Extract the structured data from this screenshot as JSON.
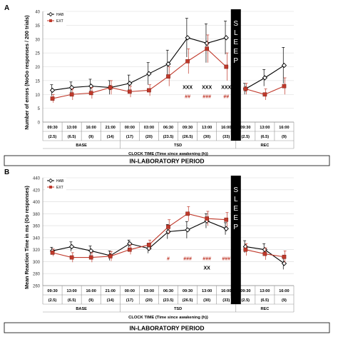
{
  "chart_data": [
    {
      "panel_label": "A",
      "type": "line",
      "ylabel": "Number of errors (NoGo responses / 200 trials)",
      "ylim": [
        0,
        40
      ],
      "yticks": [
        0,
        5,
        10,
        15,
        20,
        25,
        30,
        35,
        40
      ],
      "categories": [
        "09:30",
        "13:00",
        "16:00",
        "21:00",
        "00:00",
        "03:00",
        "06:30",
        "09:30",
        "13:00",
        "16:00",
        "09:30",
        "13:00",
        "16:00"
      ],
      "since_awakening": [
        "(2.5)",
        "(6.5)",
        "(9)",
        "(14)",
        "(17)",
        "(20)",
        "(23.5)",
        "(26.5)",
        "(30)",
        "(33)",
        "(2.5)",
        "(6.5)",
        "(9)"
      ],
      "period_groups": [
        {
          "label": "BASE",
          "span": [
            0,
            3
          ]
        },
        {
          "label": "TSD",
          "span": [
            4,
            9
          ]
        },
        {
          "label": "REC",
          "span": [
            10,
            12
          ]
        }
      ],
      "xlabel": "CLOCK TIME  (Time since awakening (h))",
      "sleep_label": "SLEEP",
      "sleep_after_index": 9,
      "series": [
        {
          "name": "HAB",
          "color": "#000000",
          "marker": "diamond-open",
          "values": [
            11.5,
            12.5,
            13,
            12.5,
            14,
            17.5,
            21,
            30.5,
            28.5,
            30.5,
            12,
            16,
            20.5
          ],
          "errors": [
            2,
            2,
            2.5,
            2.5,
            3,
            4,
            5,
            7,
            7,
            6,
            2,
            3,
            6.5
          ]
        },
        {
          "name": "EXT",
          "color": "#c0392b",
          "marker": "square",
          "values": [
            8.5,
            10,
            10.5,
            12.5,
            11,
            11.5,
            16.5,
            22,
            26.5,
            20,
            12,
            10,
            13
          ],
          "errors": [
            1.5,
            2,
            2,
            2.5,
            2,
            2,
            3.5,
            4.5,
            5,
            5,
            2,
            2,
            3
          ]
        }
      ],
      "annotations": [
        {
          "index": 7,
          "text": "XXX",
          "color": "#000000",
          "row": 1
        },
        {
          "index": 7,
          "text": "##",
          "color": "#c0392b",
          "row": 2
        },
        {
          "index": 8,
          "text": "XXX",
          "color": "#000000",
          "row": 1
        },
        {
          "index": 8,
          "text": "###",
          "color": "#c0392b",
          "row": 2
        },
        {
          "index": 9,
          "text": "XXX",
          "color": "#000000",
          "row": 1
        },
        {
          "index": 9,
          "text": "##",
          "color": "#c0392b",
          "row": 2
        }
      ],
      "footer": "IN-LABORATORY PERIOD"
    },
    {
      "panel_label": "B",
      "type": "line",
      "ylabel": "Mean Reaction Time in ms (Go responses)",
      "ylim": [
        260,
        440
      ],
      "yticks": [
        260,
        280,
        300,
        320,
        340,
        360,
        380,
        400,
        420,
        440
      ],
      "categories": [
        "09:30",
        "13:00",
        "16:00",
        "21:00",
        "00:00",
        "03:00",
        "06:30",
        "09:30",
        "13:00",
        "16:00",
        "09:30",
        "13:00",
        "16:00"
      ],
      "since_awakening": [
        "(2.5)",
        "(6.5)",
        "(9)",
        "(14)",
        "(17)",
        "(20)",
        "(23.5)",
        "(26.5)",
        "(30)",
        "(33)",
        "(2.5)",
        "(6.5)",
        "(9)"
      ],
      "period_groups": [
        {
          "label": "BASE",
          "span": [
            0,
            3
          ]
        },
        {
          "label": "TSD",
          "span": [
            4,
            9
          ]
        },
        {
          "label": "REC",
          "span": [
            10,
            12
          ]
        }
      ],
      "xlabel": "CLOCK TIME  (Time since awakening (h))",
      "sleep_label": "SLEEP",
      "sleep_after_index": 9,
      "series": [
        {
          "name": "HAB",
          "color": "#000000",
          "marker": "diamond-open",
          "values": [
            318,
            325,
            318,
            310,
            330,
            322,
            350,
            353,
            368,
            355,
            325,
            320,
            297
          ],
          "errors": [
            6,
            8,
            8,
            8,
            6,
            8,
            12,
            14,
            12,
            10,
            10,
            10,
            10
          ]
        },
        {
          "name": "EXT",
          "color": "#c0392b",
          "marker": "square",
          "values": [
            315,
            307,
            307,
            309,
            320,
            328,
            358,
            380,
            372,
            370,
            320,
            313,
            308
          ],
          "errors": [
            6,
            8,
            8,
            8,
            8,
            8,
            12,
            12,
            12,
            12,
            10,
            10,
            10
          ]
        }
      ],
      "annotations": [
        {
          "index": 6,
          "text": "#",
          "color": "#c0392b",
          "row": 1
        },
        {
          "index": 7,
          "text": "###",
          "color": "#c0392b",
          "row": 1
        },
        {
          "index": 8,
          "text": "###",
          "color": "#c0392b",
          "row": 1
        },
        {
          "index": 8,
          "text": "XX",
          "color": "#000000",
          "row": 2
        },
        {
          "index": 9,
          "text": "###",
          "color": "#c0392b",
          "row": 1
        }
      ],
      "footer": "IN-LABORATORY PERIOD"
    }
  ]
}
